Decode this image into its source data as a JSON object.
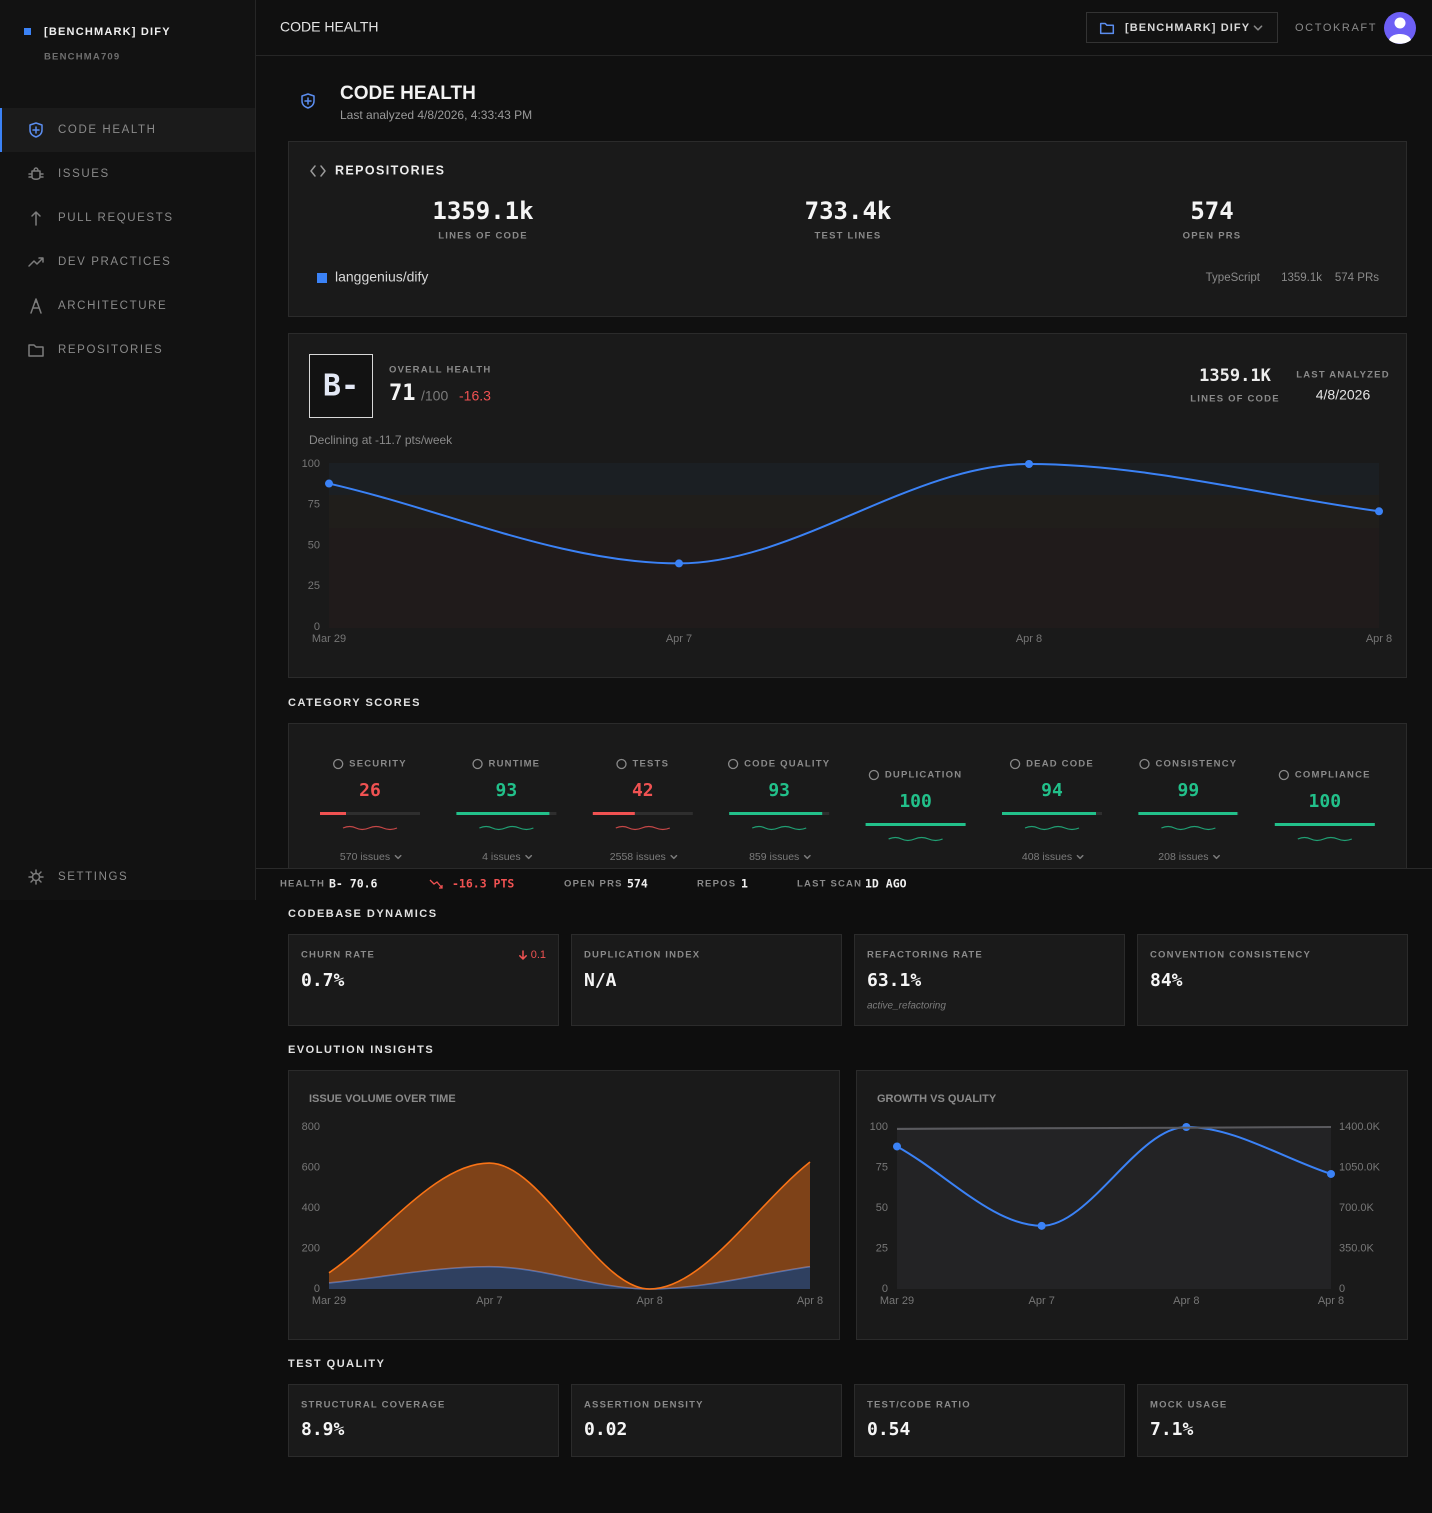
{
  "sidebar": {
    "project": "[BENCHMARK] DIFY",
    "project_id": "BENCHMA709",
    "nav": [
      "CODE HEALTH",
      "ISSUES",
      "PULL REQUESTS",
      "DEV PRACTICES",
      "ARCHITECTURE",
      "REPOSITORIES"
    ],
    "settings": "SETTINGS"
  },
  "topbar": {
    "title": "CODE HEALTH",
    "project": "[BENCHMARK] DIFY",
    "org": "OCTOKRAFT"
  },
  "header": {
    "title": "CODE HEALTH",
    "subtitle": "Last analyzed 4/8/2026, 4:33:43 PM"
  },
  "repositories": {
    "title": "REPOSITORIES",
    "stats": [
      {
        "value": "1359.1k",
        "label": "LINES OF CODE"
      },
      {
        "value": "733.4k",
        "label": "TEST LINES"
      },
      {
        "value": "574",
        "label": "OPEN PRS"
      }
    ],
    "repos": [
      {
        "name": "langgenius/dify",
        "language": "TypeScript",
        "lines": "1359.1k",
        "prs": "574 PRs"
      }
    ]
  },
  "health": {
    "grade": "B-",
    "label": "OVERALL HEALTH",
    "score": 71,
    "max": "/100",
    "delta": "-16.3",
    "lines": "1359.1K",
    "lines_label": "LINES OF CODE",
    "last_analyzed_label": "LAST ANALYZED",
    "last_analyzed": "4/8/2026",
    "trend": "Declining at -11.7 pts/week",
    "chart": {
      "type": "line",
      "categories": [
        "Mar 29",
        "Apr 7",
        "Apr 8",
        "Apr 8"
      ],
      "values": [
        88,
        39,
        100,
        71
      ],
      "color": "#3b82f6",
      "markers": true,
      "ylim": [
        0,
        100
      ],
      "yticks": [
        0,
        25,
        50,
        75,
        100
      ]
    }
  },
  "categories": {
    "title": "CATEGORY SCORES",
    "items": [
      {
        "name": "SECURITY",
        "score": 26,
        "issues": "570 issues",
        "color": "#f05252"
      },
      {
        "name": "RUNTIME",
        "score": 93,
        "issues": "4 issues",
        "color": "#22c08a"
      },
      {
        "name": "TESTS",
        "score": 42,
        "issues": "2558 issues",
        "color": "#f05252"
      },
      {
        "name": "CODE QUALITY",
        "score": 93,
        "issues": "859 issues",
        "color": "#22c08a"
      },
      {
        "name": "DUPLICATION",
        "score": 100,
        "color": "#22c08a"
      },
      {
        "name": "DEAD CODE",
        "score": 94,
        "issues": "408 issues",
        "color": "#22c08a"
      },
      {
        "name": "CONSISTENCY",
        "score": 99,
        "issues": "208 issues",
        "color": "#22c08a"
      },
      {
        "name": "COMPLIANCE",
        "score": 100,
        "color": "#22c08a"
      }
    ]
  },
  "status": {
    "health_label": "HEALTH",
    "health": "B- 70.6",
    "delta": "-16.3 PTS",
    "open_prs_label": "OPEN PRS",
    "open_prs": 574,
    "repos_label": "REPOS",
    "repos": 1,
    "last_scan_label": "LAST SCAN",
    "last_scan": "1D AGO"
  },
  "dynamics": {
    "title": "CODEBASE DYNAMICS",
    "cards": [
      {
        "label": "CHURN RATE",
        "value": "0.7%",
        "delta": "0.1"
      },
      {
        "label": "DUPLICATION INDEX",
        "value": "N/A"
      },
      {
        "label": "REFACTORING RATE",
        "value": "63.1%",
        "note": "active_refactoring"
      },
      {
        "label": "CONVENTION CONSISTENCY",
        "value": "84%"
      }
    ]
  },
  "evolution": {
    "title": "EVOLUTION INSIGHTS",
    "charts": [
      {
        "type": "area",
        "title": "ISSUE VOLUME OVER TIME",
        "categories": [
          "Mar 29",
          "Apr 7",
          "Apr 8",
          "Apr 8"
        ],
        "stacked": true,
        "series": [
          {
            "color": "#4a6fb5",
            "values": [
              30,
              110,
              0,
              110
            ]
          },
          {
            "color": "#f97316",
            "values": [
              50,
              512,
              0,
              517
            ]
          }
        ],
        "ylim": [
          0,
          800
        ],
        "yticks": [
          0,
          200,
          400,
          600,
          800
        ]
      },
      {
        "type": "line",
        "title": "GROWTH VS QUALITY",
        "categories": [
          "Mar 29",
          "Apr 7",
          "Apr 8",
          "Apr 8"
        ],
        "series": [
          {
            "color": "#3b82f6",
            "markers": true,
            "values": [
              88,
              39,
              100,
              71
            ]
          },
          {
            "color": "#5a5a5e",
            "axis": "y2",
            "values": [
              1383000,
              1389000,
              1394000,
              1400000
            ]
          }
        ],
        "ylim": [
          0,
          100
        ],
        "yticks": [
          0,
          25,
          50,
          75,
          100
        ],
        "y2lim": [
          0,
          1400000
        ],
        "y2ticks": [
          0,
          {
            "value": 350000,
            "label": "350.0K"
          },
          {
            "value": 700000,
            "label": "700.0K"
          },
          {
            "value": 1050000,
            "label": "1050.0K"
          },
          {
            "value": 1400000,
            "label": "1400.0K"
          }
        ]
      }
    ]
  },
  "test_quality": {
    "title": "TEST QUALITY",
    "cards": [
      {
        "label": "STRUCTURAL COVERAGE",
        "value": "8.9%"
      },
      {
        "label": "ASSERTION DENSITY",
        "value": "0.02"
      },
      {
        "label": "TEST/CODE RATIO",
        "value": "0.54"
      },
      {
        "label": "MOCK USAGE",
        "value": "7.1%"
      }
    ]
  }
}
